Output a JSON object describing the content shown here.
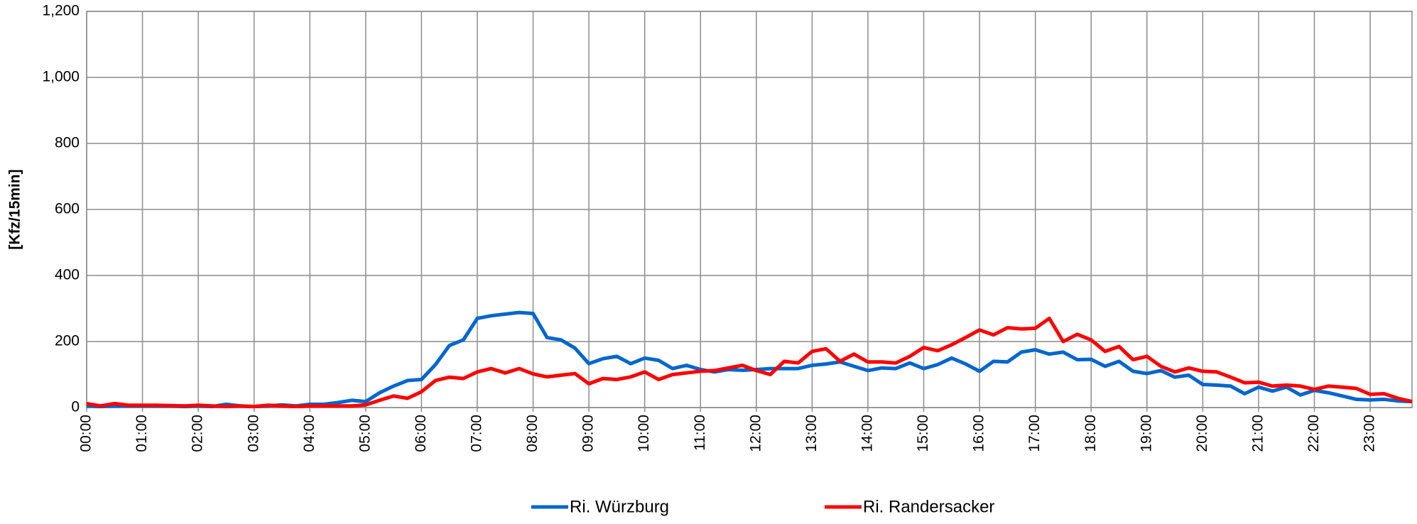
{
  "chart_data": {
    "type": "line",
    "y_label": "[Kfz/15min]",
    "categories": [
      "00:00",
      null,
      null,
      null,
      "01:00",
      null,
      null,
      null,
      "02:00",
      null,
      null,
      null,
      "03:00",
      null,
      null,
      null,
      "04:00",
      null,
      null,
      null,
      "05:00",
      null,
      null,
      null,
      "06:00",
      null,
      null,
      null,
      "07:00",
      null,
      null,
      null,
      "08:00",
      null,
      null,
      null,
      "09:00",
      null,
      null,
      null,
      "10:00",
      null,
      null,
      null,
      "11:00",
      null,
      null,
      null,
      "12:00",
      null,
      null,
      null,
      "13:00",
      null,
      null,
      null,
      "14:00",
      null,
      null,
      null,
      "15:00",
      null,
      null,
      null,
      "16:00",
      null,
      null,
      null,
      "17:00",
      null,
      null,
      null,
      "18:00",
      null,
      null,
      null,
      "19:00",
      null,
      null,
      null,
      "20:00",
      null,
      null,
      null,
      "21:00",
      null,
      null,
      null,
      "22:00",
      null,
      null,
      null,
      "23:00",
      null,
      null,
      null
    ],
    "series": [
      {
        "name": "Ri. Würzburg",
        "color": "#0066cc",
        "values": [
          5,
          3,
          5,
          5,
          5,
          5,
          5,
          3,
          5,
          3,
          10,
          5,
          3,
          5,
          8,
          5,
          10,
          10,
          15,
          22,
          18,
          45,
          65,
          82,
          85,
          130,
          188,
          205,
          270,
          278,
          283,
          288,
          285,
          212,
          205,
          180,
          133,
          148,
          155,
          133,
          150,
          143,
          118,
          128,
          115,
          108,
          115,
          113,
          115,
          118,
          118,
          118,
          128,
          132,
          138,
          125,
          112,
          120,
          118,
          135,
          118,
          130,
          150,
          132,
          110,
          140,
          138,
          168,
          175,
          162,
          168,
          145,
          146,
          125,
          140,
          110,
          103,
          112,
          92,
          98,
          70,
          68,
          65,
          42,
          62,
          50,
          62,
          38,
          52,
          45,
          35,
          25,
          23,
          25,
          20,
          18
        ]
      },
      {
        "name": "Ri. Randersacker",
        "color": "#ff0000",
        "values": [
          12,
          5,
          12,
          7,
          7,
          7,
          6,
          5,
          7,
          5,
          3,
          5,
          3,
          7,
          5,
          3,
          5,
          5,
          5,
          5,
          8,
          22,
          35,
          28,
          48,
          82,
          92,
          88,
          108,
          118,
          105,
          118,
          102,
          93,
          98,
          103,
          72,
          88,
          85,
          93,
          108,
          85,
          100,
          105,
          110,
          112,
          120,
          128,
          112,
          100,
          140,
          135,
          170,
          178,
          140,
          162,
          138,
          138,
          135,
          155,
          182,
          172,
          190,
          212,
          235,
          220,
          242,
          238,
          240,
          270,
          200,
          222,
          205,
          170,
          185,
          145,
          155,
          125,
          108,
          120,
          110,
          108,
          92,
          75,
          77,
          65,
          68,
          65,
          55,
          65,
          62,
          58,
          40,
          42,
          28,
          18
        ]
      }
    ],
    "ylim": [
      0,
      1200
    ],
    "yticks": [
      0,
      200,
      400,
      600,
      800,
      {
        "value": 1000,
        "label": "1,000"
      },
      {
        "value": 1200,
        "label": "1,200"
      }
    ],
    "grid": true,
    "legend": "bottom"
  }
}
